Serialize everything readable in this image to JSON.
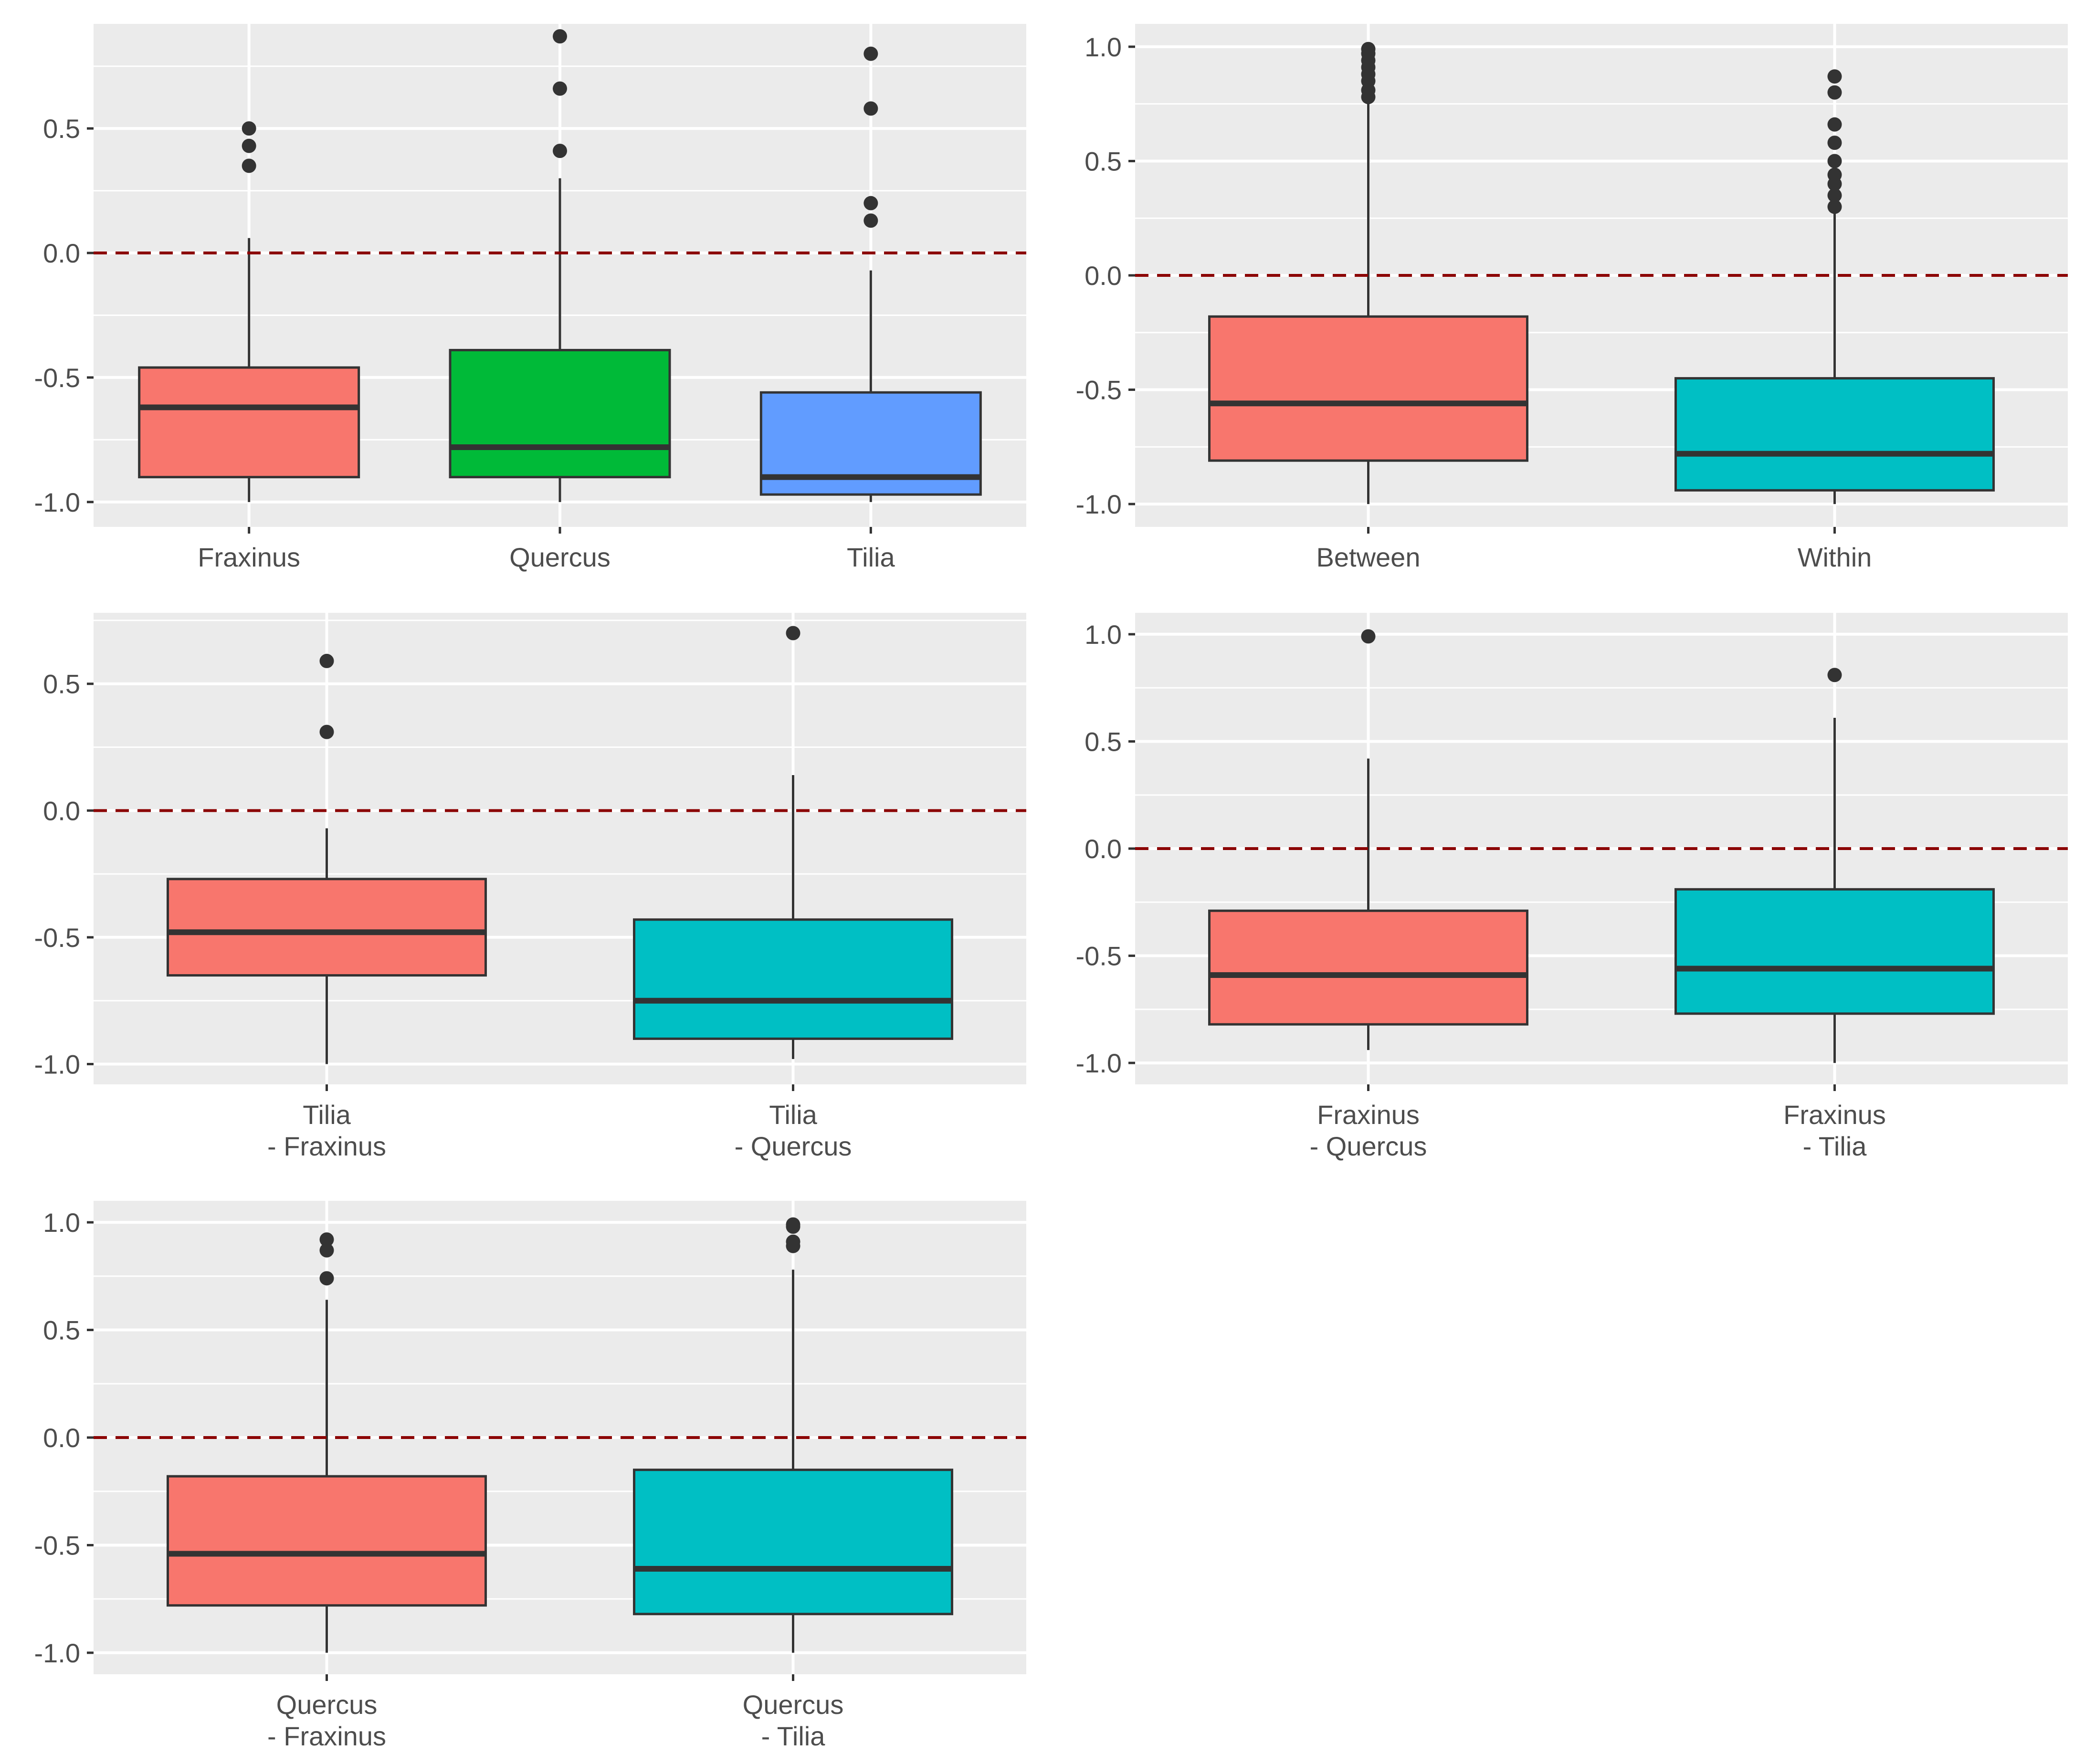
{
  "figure": {
    "background": "#ffffff",
    "panel_background": "#ebebeb",
    "grid_color": "#ffffff",
    "reference_line_color": "#8b0000",
    "whisker_color": "#333333"
  },
  "chart_data": [
    {
      "type": "boxplot",
      "title": "",
      "xlabel": "",
      "ylabel": "",
      "ylim": [
        -1.1,
        0.92
      ],
      "yticks": [
        "-1.0",
        "-0.5",
        "0.0",
        "0.5"
      ],
      "ytick_values": [
        -1.0,
        -0.5,
        0.0,
        0.5
      ],
      "reference_line": {
        "y": 0.0,
        "style": "dashed"
      },
      "grid": true,
      "legend": "none",
      "categories": [
        [
          "Fraxinus"
        ],
        [
          "Quercus"
        ],
        [
          "Tilia"
        ]
      ],
      "boxes": [
        {
          "fill": "#f8766d",
          "whislo": -1.0,
          "q1": -0.9,
          "median": -0.62,
          "q3": -0.46,
          "whishi": 0.06,
          "outliers": [
            0.35,
            0.43,
            0.5
          ]
        },
        {
          "fill": "#00ba38",
          "whislo": -1.0,
          "q1": -0.9,
          "median": -0.78,
          "q3": -0.39,
          "whishi": 0.3,
          "outliers": [
            0.41,
            0.66,
            0.87
          ]
        },
        {
          "fill": "#619cff",
          "whislo": -1.0,
          "q1": -0.97,
          "median": -0.9,
          "q3": -0.56,
          "whishi": -0.07,
          "outliers": [
            0.13,
            0.2,
            0.58,
            0.8
          ]
        }
      ]
    },
    {
      "type": "boxplot",
      "title": "",
      "xlabel": "",
      "ylabel": "",
      "ylim": [
        -1.1,
        1.1
      ],
      "yticks": [
        "-1.0",
        "-0.5",
        "0.0",
        "0.5",
        "1.0"
      ],
      "ytick_values": [
        -1.0,
        -0.5,
        0.0,
        0.5,
        1.0
      ],
      "reference_line": {
        "y": 0.0,
        "style": "dashed"
      },
      "grid": true,
      "legend": "none",
      "categories": [
        [
          "Between"
        ],
        [
          "Within"
        ]
      ],
      "boxes": [
        {
          "fill": "#f8766d",
          "whislo": -1.0,
          "q1": -0.81,
          "median": -0.56,
          "q3": -0.18,
          "whishi": 0.75,
          "outliers": [
            0.78,
            0.81,
            0.85,
            0.88,
            0.91,
            0.94,
            0.97,
            0.99
          ]
        },
        {
          "fill": "#00bfc4",
          "whislo": -1.0,
          "q1": -0.94,
          "median": -0.78,
          "q3": -0.45,
          "whishi": 0.28,
          "outliers": [
            0.3,
            0.35,
            0.4,
            0.44,
            0.5,
            0.58,
            0.66,
            0.8,
            0.87
          ]
        }
      ]
    },
    {
      "type": "boxplot",
      "title": "",
      "xlabel": "",
      "ylabel": "",
      "ylim": [
        -1.08,
        0.78
      ],
      "yticks": [
        "-1.0",
        "-0.5",
        "0.0",
        "0.5"
      ],
      "ytick_values": [
        -1.0,
        -0.5,
        0.0,
        0.5
      ],
      "reference_line": {
        "y": 0.0,
        "style": "dashed"
      },
      "grid": true,
      "legend": "none",
      "categories": [
        [
          "Tilia",
          "- Fraxinus"
        ],
        [
          "Tilia",
          "- Quercus"
        ]
      ],
      "boxes": [
        {
          "fill": "#f8766d",
          "whislo": -1.0,
          "q1": -0.65,
          "median": -0.48,
          "q3": -0.27,
          "whishi": -0.07,
          "outliers": [
            0.31,
            0.59
          ]
        },
        {
          "fill": "#00bfc4",
          "whislo": -0.98,
          "q1": -0.9,
          "median": -0.75,
          "q3": -0.43,
          "whishi": 0.14,
          "outliers": [
            0.7
          ]
        }
      ]
    },
    {
      "type": "boxplot",
      "title": "",
      "xlabel": "",
      "ylabel": "",
      "ylim": [
        -1.1,
        1.1
      ],
      "yticks": [
        "-1.0",
        "-0.5",
        "0.0",
        "0.5",
        "1.0"
      ],
      "ytick_values": [
        -1.0,
        -0.5,
        0.0,
        0.5,
        1.0
      ],
      "reference_line": {
        "y": 0.0,
        "style": "dashed"
      },
      "grid": true,
      "legend": "none",
      "categories": [
        [
          "Fraxinus",
          "- Quercus"
        ],
        [
          "Fraxinus",
          "- Tilia"
        ]
      ],
      "boxes": [
        {
          "fill": "#f8766d",
          "whislo": -0.94,
          "q1": -0.82,
          "median": -0.59,
          "q3": -0.29,
          "whishi": 0.42,
          "outliers": [
            0.99
          ]
        },
        {
          "fill": "#00bfc4",
          "whislo": -1.0,
          "q1": -0.77,
          "median": -0.56,
          "q3": -0.19,
          "whishi": 0.61,
          "outliers": [
            0.81
          ]
        }
      ]
    },
    {
      "type": "boxplot",
      "title": "",
      "xlabel": "",
      "ylabel": "",
      "ylim": [
        -1.1,
        1.1
      ],
      "yticks": [
        "-1.0",
        "-0.5",
        "0.0",
        "0.5",
        "1.0"
      ],
      "ytick_values": [
        -1.0,
        -0.5,
        0.0,
        0.5,
        1.0
      ],
      "reference_line": {
        "y": 0.0,
        "style": "dashed"
      },
      "grid": true,
      "legend": "none",
      "categories": [
        [
          "Quercus",
          "- Fraxinus"
        ],
        [
          "Quercus",
          "- Tilia"
        ]
      ],
      "boxes": [
        {
          "fill": "#f8766d",
          "whislo": -1.0,
          "q1": -0.78,
          "median": -0.54,
          "q3": -0.18,
          "whishi": 0.64,
          "outliers": [
            0.74,
            0.87,
            0.92
          ]
        },
        {
          "fill": "#00bfc4",
          "whislo": -1.0,
          "q1": -0.82,
          "median": -0.61,
          "q3": -0.15,
          "whishi": 0.78,
          "outliers": [
            0.89,
            0.91,
            0.98,
            0.99
          ]
        }
      ]
    }
  ]
}
